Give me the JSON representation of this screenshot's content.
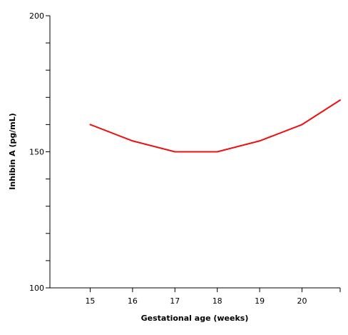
{
  "chart_data": {
    "type": "line",
    "title": "",
    "xlabel": "Gestational age (weeks)",
    "ylabel": "Inhibin A (pg/mL)",
    "x": [
      15,
      16,
      17,
      18,
      19,
      20,
      20.9
    ],
    "series": [
      {
        "values": [
          160,
          154,
          150,
          150,
          154,
          160,
          169
        ],
        "color": "#ee1111"
      }
    ],
    "xlim": [
      14.05,
      20.9
    ],
    "ylim": [
      100,
      200
    ],
    "x_tick_labels": [
      "15",
      "16",
      "17",
      "18",
      "19",
      "20"
    ],
    "y_tick_labels": [
      "100",
      "150",
      "200"
    ],
    "y_minor_ticks": [
      110,
      120,
      130,
      140,
      160,
      170,
      180,
      190
    ],
    "grid": false,
    "legend": "none"
  }
}
